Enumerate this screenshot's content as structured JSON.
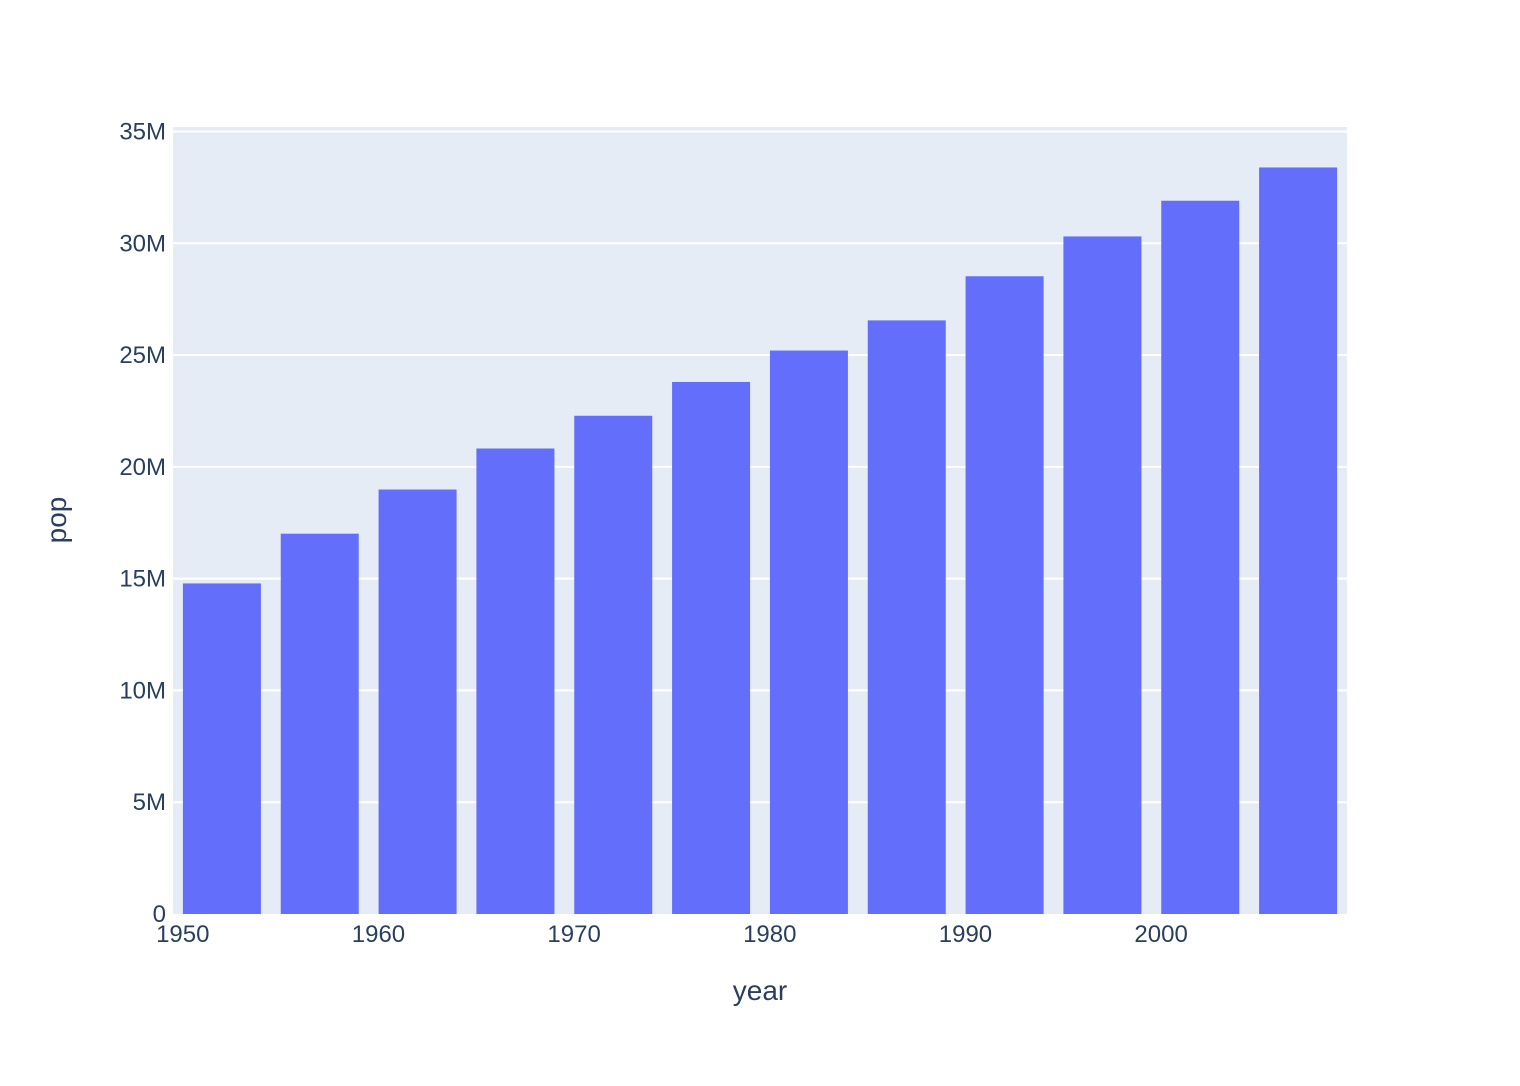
{
  "chart_data": {
    "type": "bar",
    "title": "",
    "xlabel": "year",
    "ylabel": "pop",
    "series": [
      {
        "name": "pop",
        "x": [
          1952,
          1957,
          1962,
          1967,
          1972,
          1977,
          1982,
          1987,
          1992,
          1997,
          2002,
          2007
        ],
        "values": [
          14785584,
          17010154,
          18985849,
          20819767,
          22284500,
          23796400,
          25201900,
          26549700,
          28523502,
          30305843,
          31902268,
          33390141
        ]
      }
    ],
    "x_tick_values": [
      1950,
      1960,
      1970,
      1980,
      1990,
      2000
    ],
    "x_tick_labels": [
      "1950",
      "1960",
      "1970",
      "1980",
      "1990",
      "2000"
    ],
    "y_tick_values": [
      0,
      5000000,
      10000000,
      15000000,
      20000000,
      25000000,
      30000000,
      35000000
    ],
    "y_tick_labels": [
      "0",
      "5M",
      "10M",
      "15M",
      "20M",
      "25M",
      "30M",
      "35M"
    ],
    "x_range": [
      1949.5,
      2009.5
    ],
    "y_range": [
      0,
      35200000
    ],
    "grid": true,
    "legend": "none",
    "colors": {
      "bar": "#636EFA",
      "plot_background": "#E5ECF6",
      "grid": "#FFFFFF",
      "text": "#2A3F5F",
      "page_background": "#FFFFFF"
    }
  }
}
